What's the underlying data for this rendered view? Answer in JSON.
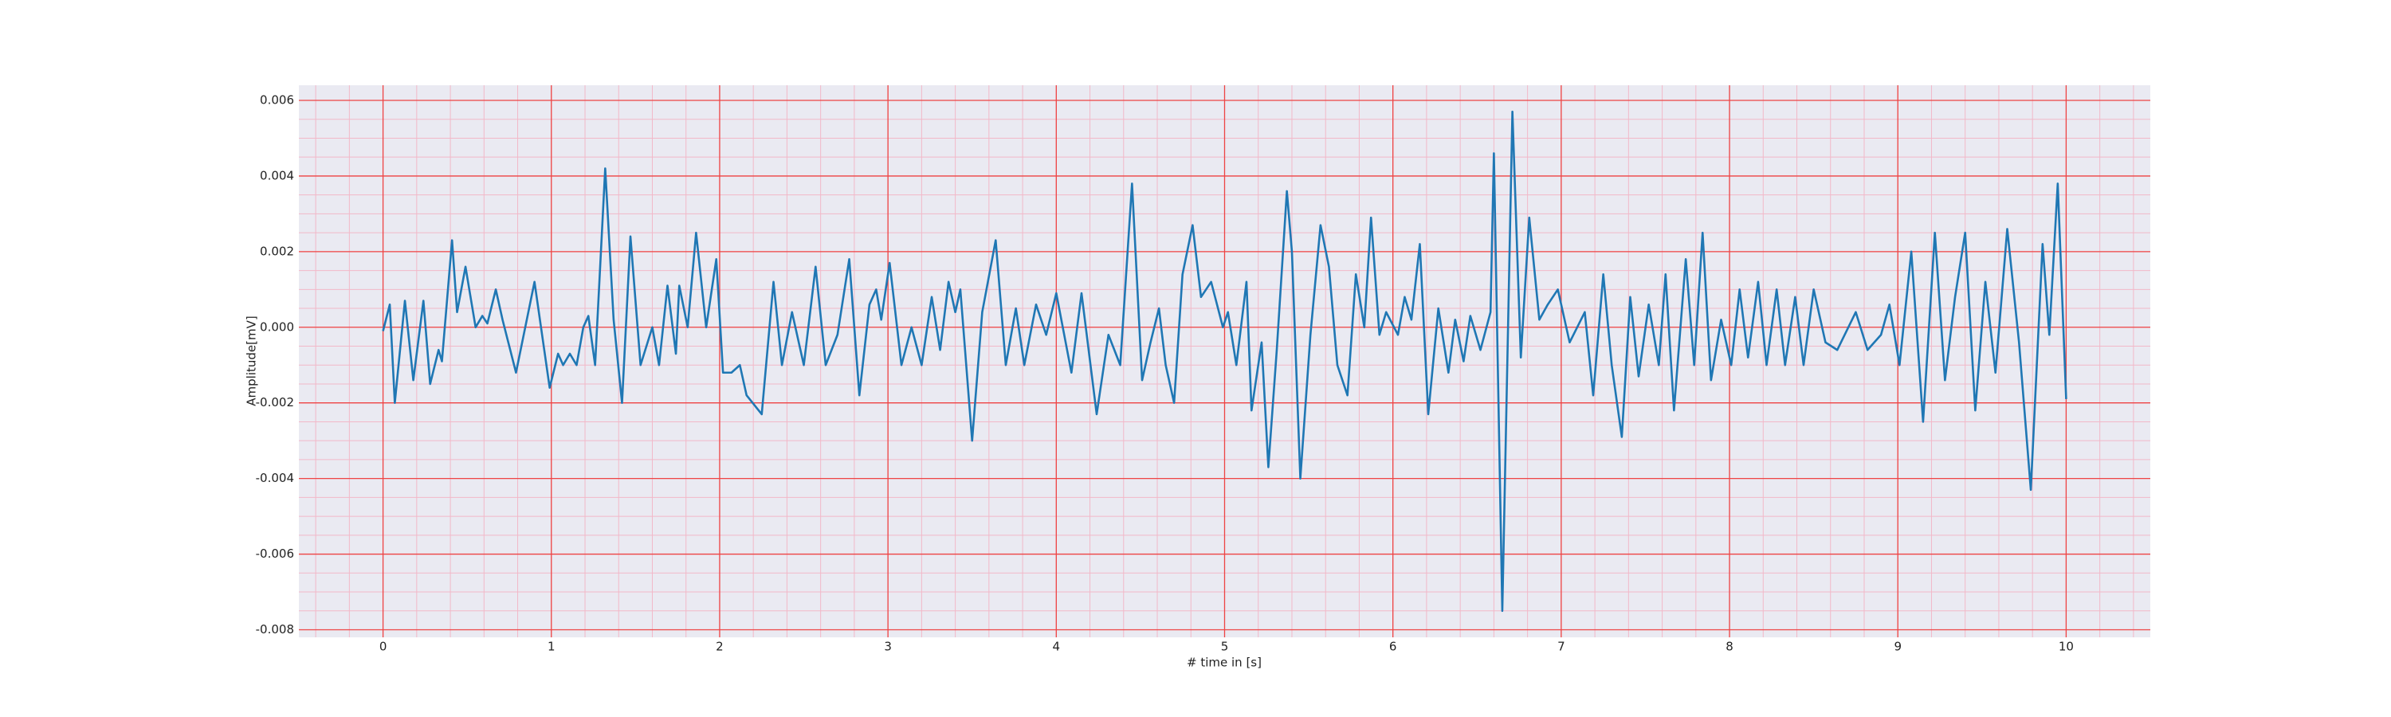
{
  "chart_data": {
    "type": "line",
    "x_label": "# time in [s]",
    "y_label": "Amplitude[mV]",
    "xlim": [
      -0.5,
      10.5
    ],
    "ylim": [
      -0.0082,
      0.0064
    ],
    "xticks": [
      0,
      1,
      2,
      3,
      4,
      5,
      6,
      7,
      8,
      9,
      10
    ],
    "yticks": [
      -0.008,
      -0.006,
      -0.004,
      -0.002,
      {
        "value": 0,
        "label": "0.000"
      },
      0.002,
      0.004,
      0.006
    ],
    "grid": true,
    "minor_grid": true,
    "grid_color": "#ee4444",
    "minor_grid_color": "#f2b8c8",
    "background": "#eaeaf2",
    "series": [
      {
        "color": "#1f77b4",
        "x": [
          0,
          0.04,
          0.07,
          0.13,
          0.18,
          0.24,
          0.28,
          0.33,
          0.35,
          0.41,
          0.44,
          0.49,
          0.55,
          0.59,
          0.62,
          0.67,
          0.71,
          0.79,
          0.9,
          0.99,
          1.04,
          1.07,
          1.11,
          1.15,
          1.19,
          1.22,
          1.26,
          1.32,
          1.37,
          1.42,
          1.47,
          1.53,
          1.6,
          1.64,
          1.69,
          1.74,
          1.76,
          1.81,
          1.86,
          1.92,
          1.98,
          2.02,
          2.07,
          2.12,
          2.16,
          2.25,
          2.32,
          2.37,
          2.43,
          2.5,
          2.57,
          2.63,
          2.7,
          2.77,
          2.83,
          2.89,
          2.93,
          2.96,
          3.01,
          3.08,
          3.14,
          3.2,
          3.26,
          3.31,
          3.36,
          3.4,
          3.43,
          3.5,
          3.56,
          3.64,
          3.7,
          3.76,
          3.81,
          3.88,
          3.94,
          4.0,
          4.09,
          4.15,
          4.24,
          4.31,
          4.38,
          4.45,
          4.51,
          4.56,
          4.61,
          4.65,
          4.7,
          4.75,
          4.81,
          4.86,
          4.92,
          4.99,
          5.02,
          5.07,
          5.13,
          5.16,
          5.22,
          5.26,
          5.31,
          5.37,
          5.4,
          5.45,
          5.51,
          5.57,
          5.62,
          5.67,
          5.73,
          5.78,
          5.83,
          5.87,
          5.92,
          5.96,
          6.03,
          6.07,
          6.11,
          6.16,
          6.21,
          6.27,
          6.33,
          6.37,
          6.42,
          6.46,
          6.52,
          6.58,
          6.6,
          6.65,
          6.71,
          6.76,
          6.81,
          6.87,
          6.92,
          6.98,
          7.05,
          7.14,
          7.19,
          7.25,
          7.3,
          7.36,
          7.41,
          7.46,
          7.52,
          7.58,
          7.62,
          7.67,
          7.74,
          7.79,
          7.84,
          7.89,
          7.95,
          8.01,
          8.06,
          8.11,
          8.17,
          8.22,
          8.28,
          8.33,
          8.39,
          8.44,
          8.5,
          8.57,
          8.64,
          8.75,
          8.82,
          8.9,
          8.95,
          9.01,
          9.08,
          9.15,
          9.22,
          9.28,
          9.34,
          9.4,
          9.46,
          9.52,
          9.58,
          9.65,
          9.72,
          9.79,
          9.86,
          9.9,
          9.95,
          10
        ],
        "values": [
          -0.0001,
          0.0006,
          -0.002,
          0.0007,
          -0.0014,
          0.0007,
          -0.0015,
          -0.0006,
          -0.0009,
          0.0023,
          0.0004,
          0.0016,
          0,
          0.0003,
          0.0001,
          0.001,
          0.0002,
          -0.0012,
          0.0012,
          -0.0016,
          -0.0007,
          -0.001,
          -0.0007,
          -0.001,
          0,
          0.0003,
          -0.001,
          0.0042,
          0.0002,
          -0.002,
          0.0024,
          -0.001,
          0,
          -0.001,
          0.0011,
          -0.0007,
          0.0011,
          0,
          0.0025,
          0,
          0.0018,
          -0.0012,
          -0.0012,
          -0.001,
          -0.0018,
          -0.0023,
          0.0012,
          -0.001,
          0.0004,
          -0.001,
          0.0016,
          -0.001,
          -0.0002,
          0.0018,
          -0.0018,
          0.0006,
          0.001,
          0.0002,
          0.0017,
          -0.001,
          0,
          -0.001,
          0.0008,
          -0.0006,
          0.0012,
          0.0004,
          0.001,
          -0.003,
          0.0004,
          0.0023,
          -0.001,
          0.0005,
          -0.001,
          0.0006,
          -0.0002,
          0.0009,
          -0.0012,
          0.0009,
          -0.0023,
          -0.0002,
          -0.001,
          0.0038,
          -0.0014,
          -0.0004,
          0.0005,
          -0.001,
          -0.002,
          0.0014,
          0.0027,
          0.0008,
          0.0012,
          0,
          0.0004,
          -0.001,
          0.0012,
          -0.0022,
          -0.0004,
          -0.0037,
          -0.0006,
          0.0036,
          0.002,
          -0.004,
          -0.0002,
          0.0027,
          0.0016,
          -0.001,
          -0.0018,
          0.0014,
          0,
          0.0029,
          -0.0002,
          0.0004,
          -0.0002,
          0.0008,
          0.0002,
          0.0022,
          -0.0023,
          0.0005,
          -0.0012,
          0.0002,
          -0.0009,
          0.0003,
          -0.0006,
          0.0004,
          0.0046,
          -0.0075,
          0.0057,
          -0.0008,
          0.0029,
          0.0002,
          0.0006,
          0.001,
          -0.0004,
          0.0004,
          -0.0018,
          0.0014,
          -0.001,
          -0.0029,
          0.0008,
          -0.0013,
          0.0006,
          -0.001,
          0.0014,
          -0.0022,
          0.0018,
          -0.001,
          0.0025,
          -0.0014,
          0.0002,
          -0.001,
          0.001,
          -0.0008,
          0.0012,
          -0.001,
          0.001,
          -0.001,
          0.0008,
          -0.001,
          0.001,
          -0.0004,
          -0.0006,
          0.0004,
          -0.0006,
          -0.0002,
          0.0006,
          -0.001,
          0.002,
          -0.0025,
          0.0025,
          -0.0014,
          0.0008,
          0.0025,
          -0.0022,
          0.0012,
          -0.0012,
          0.0026,
          -0.0004,
          -0.0043,
          0.0022,
          -0.0002,
          0.0038,
          -0.0019
        ]
      }
    ]
  }
}
